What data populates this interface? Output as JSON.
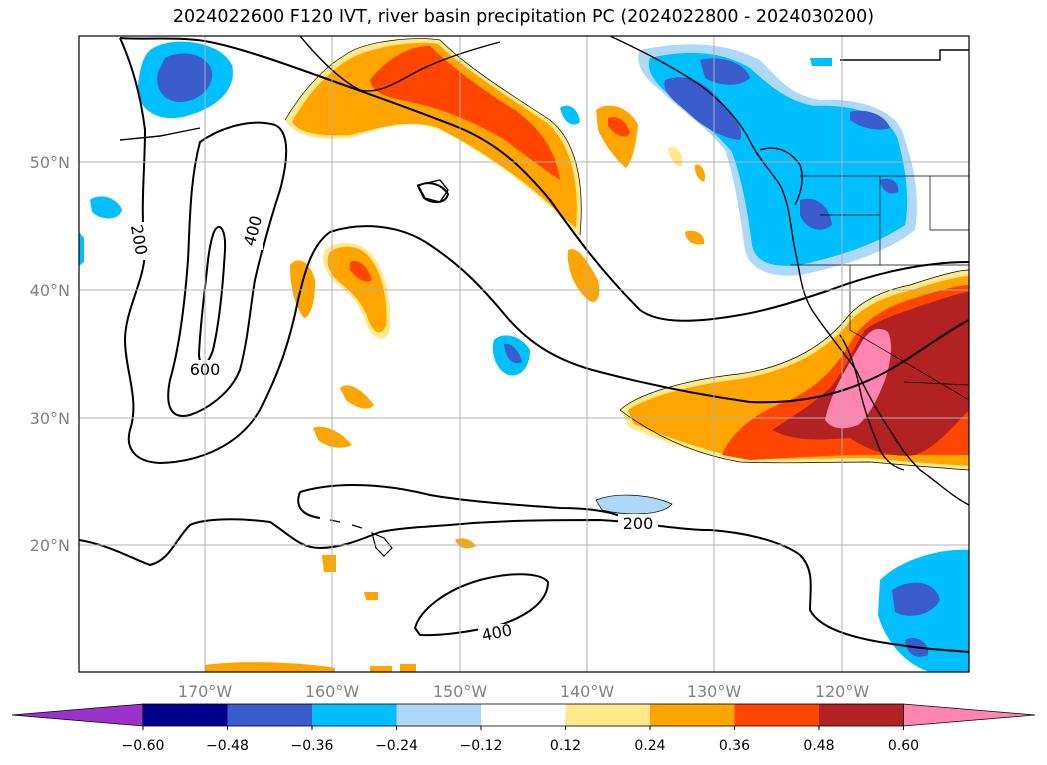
{
  "title": "2024022600 F120 IVT, river basin precipitation PC (2024022800 - 2024030200)",
  "map": {
    "lat_labels": [
      "50°N",
      "40°N",
      "30°N",
      "20°N"
    ],
    "lon_labels": [
      "170°W",
      "160°W",
      "150°W",
      "140°W",
      "130°W",
      "120°W"
    ],
    "contour_labels": [
      "200",
      "400",
      "600",
      "200",
      "400"
    ]
  },
  "colorbar": {
    "ticks": [
      "−0.60",
      "−0.48",
      "−0.36",
      "−0.24",
      "−0.12",
      "0.12",
      "0.24",
      "0.36",
      "0.48",
      "0.60"
    ],
    "colors": [
      "#9a33cc",
      "#00008b",
      "#3a5ccc",
      "#00bfff",
      "#add8f7",
      "#ffffff",
      "#ffe98a",
      "#ffa500",
      "#ff4500",
      "#b22222",
      "#ff85b0"
    ]
  },
  "colors": {
    "grid": "#b0b0b0",
    "axis_label": "#808080"
  }
}
